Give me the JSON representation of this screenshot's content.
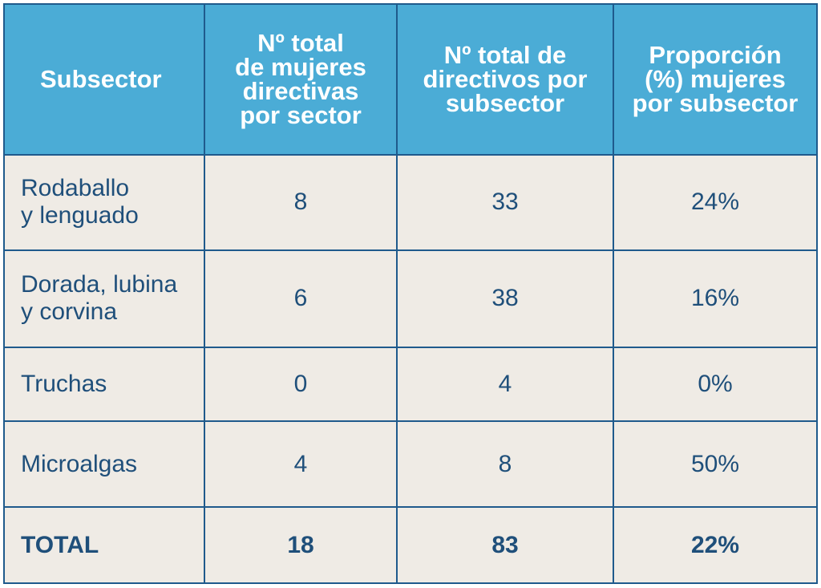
{
  "table": {
    "headers": [
      {
        "lines": [
          "Subsector"
        ]
      },
      {
        "lines": [
          "Nº total",
          "de mujeres",
          "directivas",
          "por sector"
        ]
      },
      {
        "lines": [
          "Nº total de",
          "directivos por",
          "subsector"
        ]
      },
      {
        "lines": [
          "Proporción",
          "(%) mujeres",
          "por subsector"
        ]
      }
    ],
    "rows": [
      {
        "subsector": [
          "Rodaballo",
          "y lenguado"
        ],
        "mujeres": "8",
        "directivos": "33",
        "proporcion": "24%"
      },
      {
        "subsector": [
          "Dorada, lubina",
          "y corvina"
        ],
        "mujeres": "6",
        "directivos": "38",
        "proporcion": "16%"
      },
      {
        "subsector": [
          "Truchas"
        ],
        "mujeres": "0",
        "directivos": "4",
        "proporcion": "0%"
      },
      {
        "subsector": [
          "Microalgas"
        ],
        "mujeres": "4",
        "directivos": "8",
        "proporcion": "50%"
      }
    ],
    "total": {
      "label": "TOTAL",
      "mujeres": "18",
      "directivos": "83",
      "proporcion": "22%"
    }
  },
  "colors": {
    "header_bg": "#4bacd6",
    "header_text": "#ffffff",
    "border": "#1f5a8c",
    "cell_bg": "#efebe5",
    "cell_text": "#1f4f7a"
  }
}
